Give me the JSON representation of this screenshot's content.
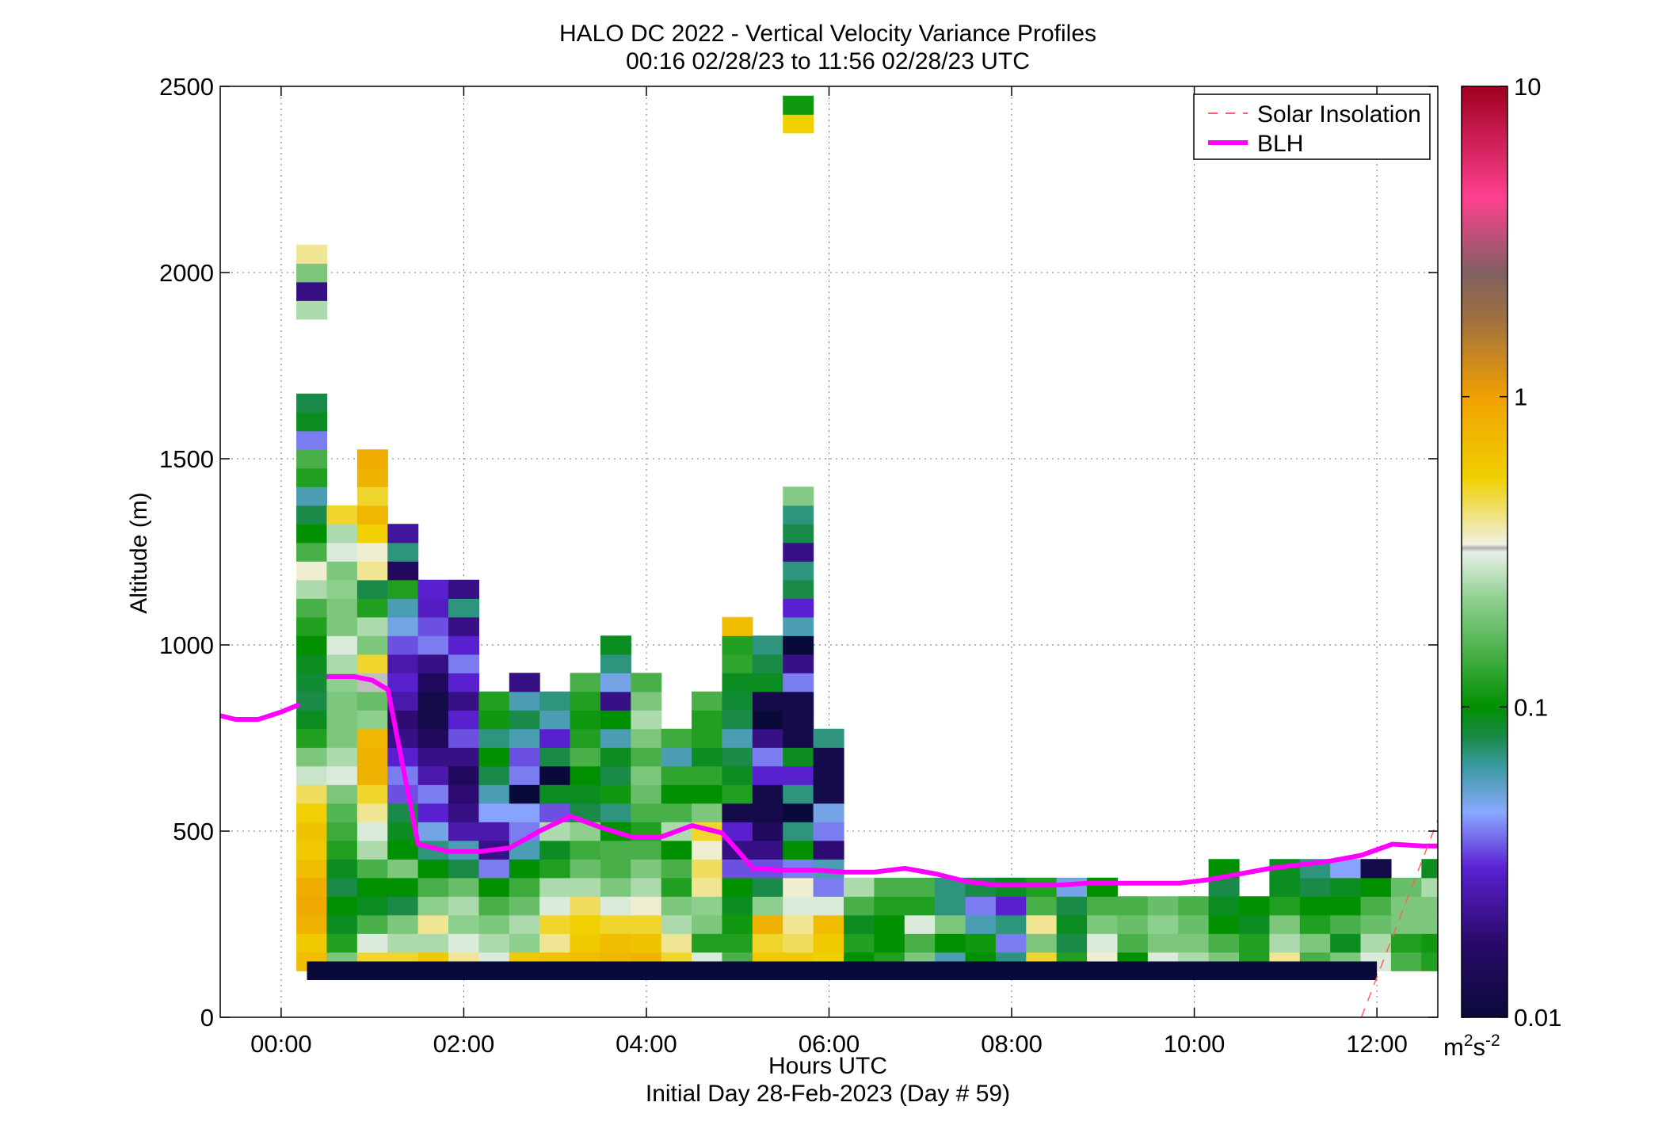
{
  "chart_data": {
    "type": "heatmap",
    "title": "HALO DC 2022 - Vertical Velocity Variance Profiles",
    "subtitle": "00:16 02/28/23 to 11:56 02/28/23  UTC",
    "xlabel": "Hours UTC",
    "xlabel2": "Initial Day 28-Feb-2023 (Day # 59)",
    "ylabel": "Altitude (m)",
    "xlim": [
      -0.667,
      12.667
    ],
    "ylim": [
      0,
      2500
    ],
    "x_ticks": [
      0,
      2,
      4,
      6,
      8,
      10,
      12
    ],
    "x_tick_labels": [
      "00:00",
      "02:00",
      "04:00",
      "06:00",
      "08:00",
      "10:00",
      "12:00"
    ],
    "y_ticks": [
      0,
      500,
      1000,
      1500,
      2000,
      2500
    ],
    "y_tick_labels": [
      "0",
      "500",
      "1000",
      "1500",
      "2000",
      "2500"
    ],
    "grid": true,
    "legend_position": "top-right",
    "legend": [
      {
        "label": "Solar Insolation",
        "style": "dashed",
        "color": "#ff6060"
      },
      {
        "label": "BLH",
        "style": "solid",
        "color": "#ff00ff"
      }
    ],
    "colorbar": {
      "scale": "log",
      "range": [
        0.01,
        10
      ],
      "ticks": [
        0.01,
        0.1,
        1,
        10
      ],
      "tick_labels": [
        "0.01",
        "0.1",
        "1",
        "10"
      ],
      "unit_base": "m",
      "unit_sup1": "2",
      "unit_mid": "s",
      "unit_sup2": "-2"
    },
    "heatmap": {
      "time_step_hours": 0.333,
      "first_column_hour": 0.333,
      "altitude_step_m": 50,
      "first_row_altitude_m": 150,
      "value_unit": "m2s-2",
      "columns": [
        [
          0.7,
          0.6,
          0.8,
          0.9,
          0.85,
          0.7,
          0.6,
          0.65,
          0.55,
          0.45,
          0.28,
          0.2,
          0.12,
          0.09,
          0.08,
          0.085,
          0.09,
          0.1,
          0.12,
          0.15,
          0.25,
          0.35,
          0.15,
          0.1,
          0.08,
          0.06,
          0.12,
          0.15,
          0.04,
          0.09,
          0.08,
          0.0,
          0.0,
          0.0,
          0.0,
          0.25,
          0.02,
          0.2,
          0.4
        ],
        [
          0.2,
          0.12,
          0.09,
          0.1,
          0.08,
          0.09,
          0.12,
          0.14,
          0.16,
          0.2,
          0.3,
          0.25,
          0.2,
          0.2,
          0.2,
          0.22,
          0.25,
          0.3,
          0.2,
          0.2,
          0.22,
          0.2,
          0.3,
          0.25,
          0.5
        ],
        [
          0.5,
          0.3,
          0.15,
          0.09,
          0.1,
          0.15,
          0.25,
          0.3,
          0.4,
          0.5,
          0.8,
          0.8,
          0.75,
          0.22,
          0.18,
          0.33,
          0.5,
          0.2,
          0.25,
          0.12,
          0.08,
          0.4,
          0.35,
          0.55,
          0.75,
          0.5,
          0.8,
          0.85
        ],
        [
          0.5,
          0.25,
          0.2,
          0.08,
          0.1,
          0.2,
          0.1,
          0.09,
          0.08,
          0.035,
          0.04,
          0.03,
          0.02,
          0.018,
          0.025,
          0.03,
          0.025,
          0.035,
          0.05,
          0.06,
          0.12,
          0.015,
          0.07,
          0.023
        ],
        [
          0.6,
          0.25,
          0.4,
          0.22,
          0.15,
          0.1,
          0.07,
          0.05,
          0.03,
          0.04,
          0.025,
          0.02,
          0.015,
          0.012,
          0.012,
          0.015,
          0.02,
          0.04,
          0.035,
          0.028,
          0.03
        ],
        [
          0.4,
          0.3,
          0.22,
          0.25,
          0.18,
          0.08,
          0.06,
          0.025,
          0.02,
          0.018,
          0.015,
          0.02,
          0.035,
          0.03,
          0.02,
          0.03,
          0.04,
          0.03,
          0.02,
          0.07,
          0.02
        ],
        [
          0.3,
          0.25,
          0.2,
          0.15,
          0.1,
          0.04,
          0.02,
          0.025,
          0.045,
          0.06,
          0.08,
          0.1,
          0.07,
          0.11,
          0.12
        ],
        [
          0.6,
          0.22,
          0.25,
          0.18,
          0.14,
          0.1,
          0.06,
          0.04,
          0.045,
          0.01,
          0.04,
          0.035,
          0.06,
          0.08,
          0.06,
          0.02
        ],
        [
          0.65,
          0.4,
          0.5,
          0.3,
          0.25,
          0.12,
          0.09,
          0.25,
          0.035,
          0.09,
          0.01,
          0.08,
          0.03,
          0.06,
          0.07
        ],
        [
          0.7,
          0.6,
          0.55,
          0.45,
          0.25,
          0.18,
          0.14,
          0.22,
          0.08,
          0.09,
          0.1,
          0.15,
          0.12,
          0.11,
          0.12,
          0.15
        ],
        [
          0.75,
          0.7,
          0.5,
          0.3,
          0.2,
          0.15,
          0.15,
          0.1,
          0.07,
          0.11,
          0.08,
          0.09,
          0.06,
          0.1,
          0.02,
          0.05,
          0.07,
          0.09
        ],
        [
          0.8,
          0.65,
          0.5,
          0.35,
          0.25,
          0.2,
          0.15,
          0.12,
          0.15,
          0.18,
          0.2,
          0.15,
          0.2,
          0.25,
          0.2,
          0.15
        ],
        [
          0.5,
          0.4,
          0.25,
          0.2,
          0.12,
          0.15,
          0.1,
          0.25,
          0.15,
          0.1,
          0.13,
          0.06,
          0.14
        ],
        [
          0.3,
          0.12,
          0.2,
          0.22,
          0.4,
          0.45,
          0.35,
          0.5,
          0.2,
          0.1,
          0.13,
          0.09,
          0.12,
          0.12,
          0.15
        ],
        [
          0.15,
          0.12,
          0.11,
          0.09,
          0.1,
          0.035,
          0.02,
          0.03,
          0.012,
          0.12,
          0.09,
          0.08,
          0.06,
          0.08,
          0.085,
          0.09,
          0.13,
          0.12,
          0.7
        ],
        [
          0.6,
          0.5,
          0.8,
          0.22,
          0.08,
          0.035,
          0.02,
          0.015,
          0.012,
          0.012,
          0.03,
          0.04,
          0.02,
          0.01,
          0.012,
          0.09,
          0.08,
          0.07
        ],
        [
          0.6,
          0.45,
          0.4,
          0.3,
          0.35,
          0.04,
          0.1,
          0.07,
          0.01,
          0.07,
          0.03,
          0.09,
          0.012,
          0.012,
          0.012,
          0.04,
          0.02,
          0.009,
          0.06,
          0.03,
          0.08,
          0.07,
          0.02,
          0.08,
          0.07,
          0.21,
          0.0,
          0.0,
          0.0,
          0.0,
          0.0,
          0.0,
          0.0,
          0.0,
          0.0,
          0.0,
          0.0,
          0.0,
          0.0,
          0.0,
          0.0,
          0.0,
          0.0,
          0.0,
          0.0,
          0.55,
          0.11
        ],
        [
          0.55,
          0.6,
          0.7,
          0.3,
          0.04,
          0.06,
          0.018,
          0.04,
          0.05,
          0.012,
          0.012,
          0.012,
          0.07
        ],
        [
          0.1,
          0.12,
          0.09,
          0.15,
          0.25
        ],
        [
          0.12,
          0.1,
          0.1,
          0.12,
          0.15
        ],
        [
          0.2,
          0.15,
          0.3,
          0.12,
          0.15
        ],
        [
          0.06,
          0.1,
          0.2,
          0.07,
          0.07
        ],
        [
          0.1,
          0.11,
          0.06,
          0.04,
          0.08
        ],
        [
          0.07,
          0.04,
          0.07,
          0.03,
          0.09
        ],
        [
          0.5,
          0.2,
          0.4,
          0.15,
          0.12
        ],
        [
          0.12,
          0.08,
          0.09,
          0.08,
          0.05
        ],
        [
          0.35,
          0.3,
          0.2,
          0.15,
          0.1
        ],
        [
          0.1,
          0.15,
          0.18,
          0.15
        ],
        [
          0.3,
          0.2,
          0.22,
          0.18
        ],
        [
          0.25,
          0.2,
          0.18,
          0.15
        ],
        [
          0.2,
          0.15,
          0.1,
          0.09,
          0.08,
          0.1
        ],
        [
          0.12,
          0.12,
          0.09,
          0.1
        ],
        [
          0.4,
          0.25,
          0.2,
          0.12,
          0.09,
          0.09
        ],
        [
          0.15,
          0.2,
          0.12,
          0.1,
          0.08,
          0.07
        ],
        [
          0.2,
          0.09,
          0.15,
          0.1,
          0.09,
          0.045
        ],
        [
          0.3,
          0.25,
          0.18,
          0.15,
          0.1,
          0.012
        ],
        [
          0.15,
          0.12,
          0.2,
          0.2,
          0.18
        ],
        [
          0.12,
          0.11,
          0.2,
          0.2,
          0.25,
          0.09
        ]
      ]
    },
    "blh": {
      "name": "BLH",
      "segments": [
        {
          "x": [
            -0.667,
            -0.5,
            -0.25,
            0.0,
            0.2
          ],
          "y": [
            810,
            800,
            800,
            820,
            840
          ]
        },
        {
          "x": [
            0.5,
            0.8,
            1.0,
            1.17,
            1.5,
            1.83,
            2.17,
            2.5,
            2.83,
            3.17,
            3.5,
            3.83,
            4.17,
            4.5,
            4.83,
            5.17,
            5.5,
            5.83,
            6.17,
            6.5,
            6.83,
            7.17,
            7.5,
            7.83,
            8.17,
            8.5,
            8.83,
            9.17,
            9.5,
            9.83,
            10.17,
            10.5,
            10.83,
            11.17,
            11.5,
            11.83,
            12.17,
            12.5,
            12.667
          ],
          "y": [
            915,
            915,
            905,
            880,
            465,
            445,
            445,
            455,
            500,
            540,
            510,
            485,
            485,
            515,
            495,
            400,
            395,
            395,
            390,
            390,
            400,
            385,
            365,
            355,
            355,
            355,
            360,
            360,
            360,
            360,
            370,
            385,
            400,
            410,
            420,
            435,
            465,
            460,
            460
          ]
        }
      ]
    },
    "solar_insolation": {
      "name": "Solar Insolation",
      "x": [
        11.83,
        12.667
      ],
      "y": [
        0,
        530
      ]
    },
    "bottom_band": {
      "x": [
        0.283,
        12.0
      ],
      "y": [
        100,
        150
      ]
    }
  }
}
